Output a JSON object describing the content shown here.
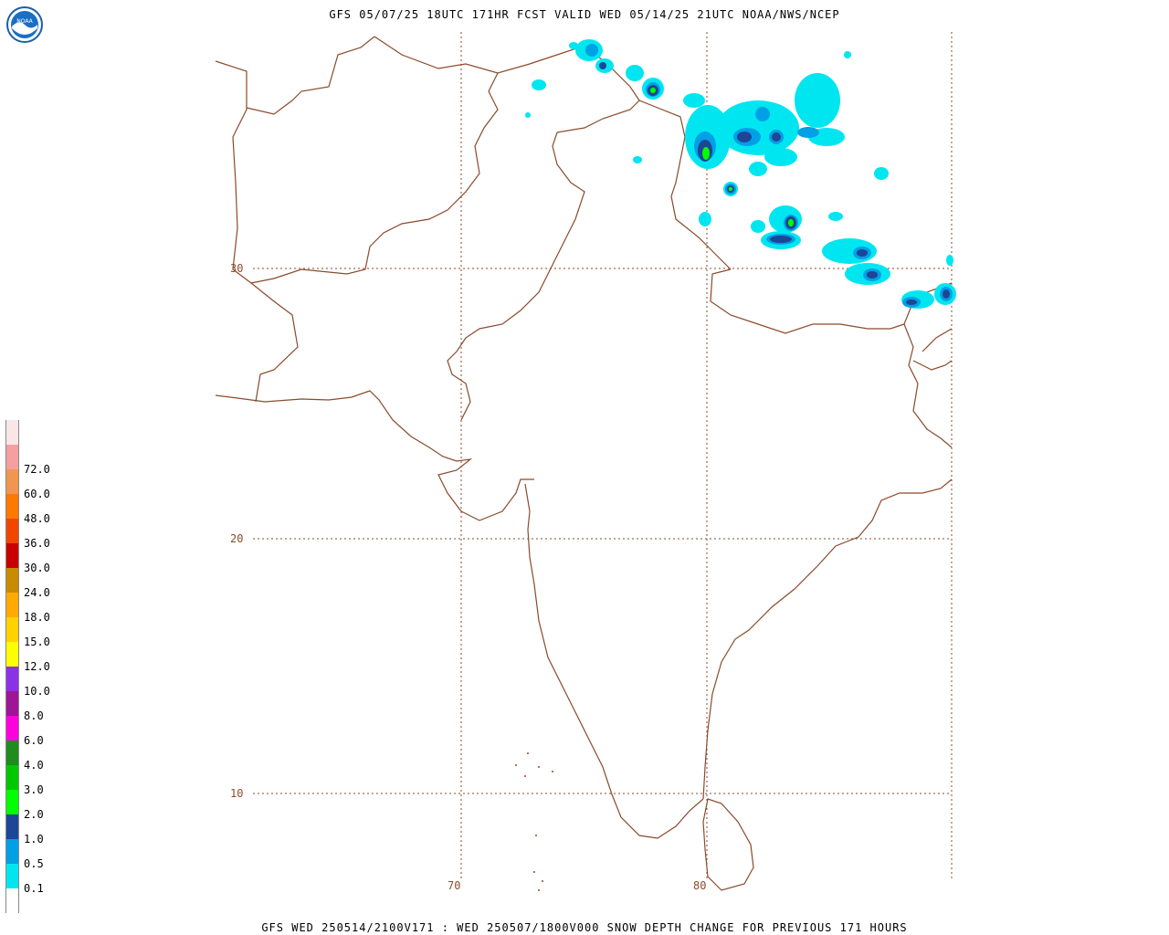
{
  "header": {
    "title": "GFS 05/07/25 18UTC 171HR FCST VALID WED 05/14/25 21UTC NOAA/NWS/NCEP"
  },
  "footer": {
    "title": "GFS WED 250514/2100V171 : WED 250507/1800V000 SNOW DEPTH CHANGE FOR PREVIOUS 171 HOURS"
  },
  "logo": {
    "text": "NOAA",
    "icon": "noaa-logo-icon"
  },
  "gridlines": {
    "latitudes": [
      "30",
      "20",
      "10"
    ],
    "longitudes": [
      "70",
      "80"
    ]
  },
  "legend": {
    "levels": [
      {
        "label": "",
        "color": "#ffffff"
      },
      {
        "label": "0.1",
        "color": "#00e6f0"
      },
      {
        "label": "0.5",
        "color": "#00a0e6"
      },
      {
        "label": "1.0",
        "color": "#1e4696"
      },
      {
        "label": "2.0",
        "color": "#00ff00"
      },
      {
        "label": "3.0",
        "color": "#00c800"
      },
      {
        "label": "4.0",
        "color": "#1e8c1e"
      },
      {
        "label": "6.0",
        "color": "#ff00dc"
      },
      {
        "label": "8.0",
        "color": "#a01496"
      },
      {
        "label": "10.0",
        "color": "#8c32e6"
      },
      {
        "label": "12.0",
        "color": "#ffff00"
      },
      {
        "label": "15.0",
        "color": "#ffd200"
      },
      {
        "label": "18.0",
        "color": "#ffaa00"
      },
      {
        "label": "24.0",
        "color": "#c88c00"
      },
      {
        "label": "30.0",
        "color": "#c80000"
      },
      {
        "label": "36.0",
        "color": "#f04600"
      },
      {
        "label": "48.0",
        "color": "#ff7800"
      },
      {
        "label": "60.0",
        "color": "#f09650"
      },
      {
        "label": "72.0",
        "color": "#f5a0a0"
      },
      {
        "label": "",
        "color": "#fae6e6"
      }
    ]
  },
  "colors": {
    "border": "#8b4a2b",
    "grid": "#8b4a2b"
  }
}
